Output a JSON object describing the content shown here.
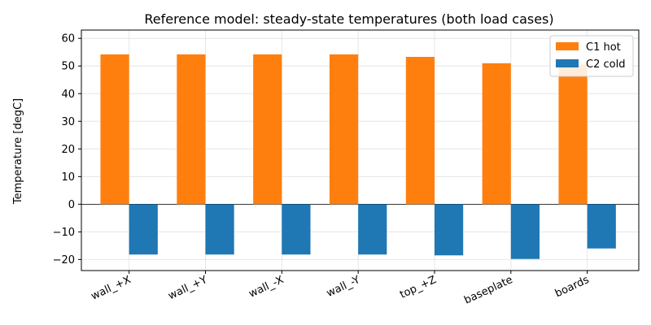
{
  "chart_data": {
    "type": "bar",
    "title": "Reference model: steady-state temperatures (both load cases)",
    "xlabel": "",
    "ylabel": "Temperature [degC]",
    "categories": [
      "wall_+X",
      "wall_+Y",
      "wall_-X",
      "wall_-Y",
      "top_+Z",
      "baseplate",
      "boards"
    ],
    "series": [
      {
        "name": "C1 hot",
        "color": "#ff7f0e",
        "values": [
          54.2,
          54.2,
          54.2,
          54.2,
          53.3,
          51.0,
          50.5
        ]
      },
      {
        "name": "C2 cold",
        "color": "#1f77b4",
        "values": [
          -18.2,
          -18.2,
          -18.2,
          -18.2,
          -18.5,
          -19.8,
          -16.0
        ]
      }
    ],
    "ylim": [
      -24,
      63
    ],
    "yticks": [
      -20,
      -10,
      0,
      10,
      20,
      30,
      40,
      50,
      60
    ],
    "grid": true,
    "legend_position": "top-right"
  }
}
